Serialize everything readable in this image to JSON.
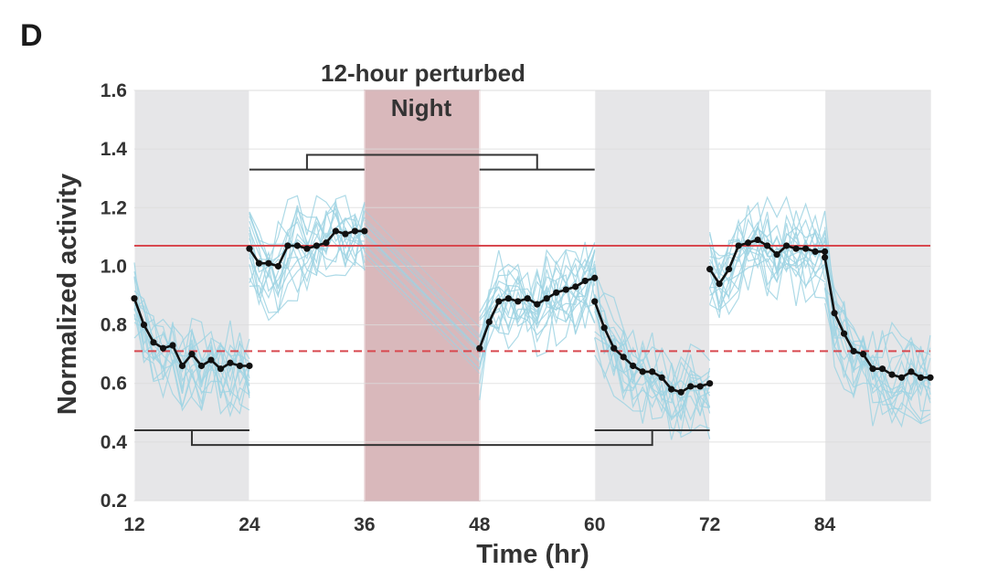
{
  "panel_label": "D",
  "chart_data": {
    "type": "line",
    "title": "",
    "annotations": [
      "12-hour perturbed",
      "Night"
    ],
    "xlabel": "Time (hr)",
    "ylabel": "Normalized activity",
    "xlim": [
      12,
      95
    ],
    "ylim": [
      0.2,
      1.6
    ],
    "x_ticks": [
      12,
      24,
      36,
      48,
      60,
      72,
      84
    ],
    "x_tick_labels": [
      "12",
      "24",
      "36",
      "48",
      "60",
      "72",
      "84"
    ],
    "y_ticks": [
      0.2,
      0.4,
      0.6,
      0.8,
      1.0,
      1.2,
      1.4,
      1.6
    ],
    "y_tick_labels": [
      "0.2",
      "0.4",
      "0.6",
      "0.8",
      "1.0",
      "1.2",
      "1.4",
      "1.6"
    ],
    "grid": true,
    "shaded_night_regions": [
      [
        12,
        24
      ],
      [
        60,
        72
      ],
      [
        84,
        95
      ]
    ],
    "perturbed_region": [
      36,
      48
    ],
    "reference_lines": [
      {
        "y": 1.07,
        "style": "solid",
        "color": "#d8484f"
      },
      {
        "y": 0.71,
        "style": "dashed",
        "color": "#d8484f"
      }
    ],
    "comparison_brackets": [
      {
        "start_span": [
          24,
          36
        ],
        "end_span": [
          48,
          60
        ],
        "level": 1.33,
        "bar_level": 1.38
      },
      {
        "start_span": [
          12,
          24
        ],
        "end_span": [
          60,
          72
        ],
        "level": 0.44,
        "bar_level": 0.39
      }
    ],
    "series": [
      {
        "color": "#111111",
        "segments": [
          {
            "x": [
              12,
              13,
              14,
              15,
              16,
              17,
              18,
              19,
              20,
              21,
              22,
              23,
              24
            ],
            "y": [
              0.89,
              0.8,
              0.74,
              0.72,
              0.73,
              0.66,
              0.7,
              0.66,
              0.68,
              0.65,
              0.67,
              0.66,
              0.66
            ]
          },
          {
            "x": [
              24,
              25,
              26,
              27,
              28,
              29,
              30,
              31,
              32,
              33,
              34,
              35,
              36
            ],
            "y": [
              1.06,
              1.01,
              1.01,
              1.0,
              1.07,
              1.07,
              1.06,
              1.07,
              1.08,
              1.12,
              1.11,
              1.12,
              1.12
            ]
          },
          {
            "x": [
              48,
              49,
              50,
              51,
              52,
              53,
              54,
              55,
              56,
              57,
              58,
              59,
              60
            ],
            "y": [
              0.72,
              0.81,
              0.88,
              0.89,
              0.88,
              0.89,
              0.87,
              0.89,
              0.91,
              0.92,
              0.93,
              0.95,
              0.96
            ]
          },
          {
            "x": [
              60,
              61,
              62,
              63,
              64,
              65,
              66,
              67,
              68,
              69,
              70,
              71,
              72
            ],
            "y": [
              0.88,
              0.79,
              0.72,
              0.69,
              0.66,
              0.64,
              0.64,
              0.62,
              0.58,
              0.57,
              0.59,
              0.59,
              0.6
            ]
          },
          {
            "x": [
              72,
              73,
              74,
              75,
              76,
              77,
              78,
              79,
              80,
              81,
              82,
              83,
              84
            ],
            "y": [
              0.99,
              0.94,
              0.99,
              1.07,
              1.08,
              1.09,
              1.07,
              1.04,
              1.07,
              1.06,
              1.06,
              1.05,
              1.05
            ]
          },
          {
            "x": [
              84,
              85,
              86,
              87,
              88,
              89,
              90,
              91,
              92,
              93,
              94,
              95
            ],
            "y": [
              1.03,
              0.84,
              0.77,
              0.71,
              0.7,
              0.65,
              0.65,
              0.63,
              0.62,
              0.64,
              0.62,
              0.62
            ]
          }
        ]
      }
    ],
    "individual_traces_color": "#9fd3e3"
  }
}
